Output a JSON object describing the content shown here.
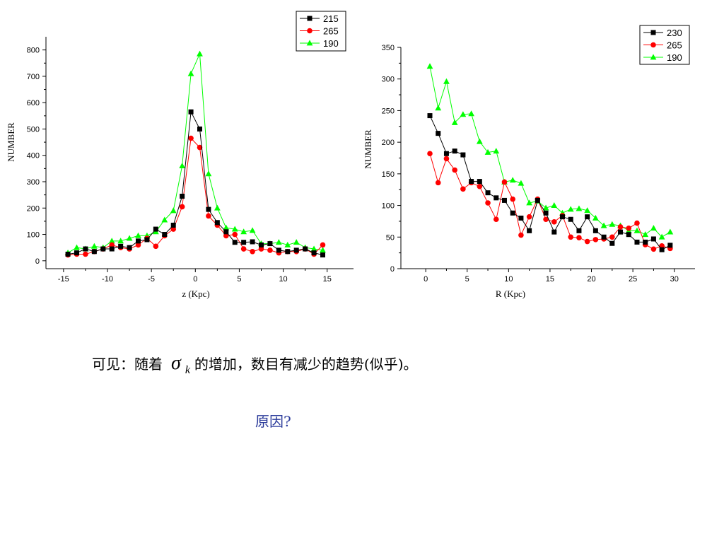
{
  "caption": {
    "before": "可见：随着",
    "symbol": "σ",
    "subscript": "k",
    "after": "的增加，数目有减少的趋势(似乎)。"
  },
  "question": "原因?",
  "colors": {
    "black": "#000000",
    "red": "#ff0000",
    "green": "#00ff00"
  },
  "chart_data": [
    {
      "type": "line",
      "title": "",
      "xlabel": "z (Kpc)",
      "ylabel": "NUMBER",
      "xlim": [
        -17,
        18
      ],
      "ylim": [
        -30,
        850
      ],
      "xticks": [
        -15,
        -10,
        -5,
        0,
        5,
        10,
        15
      ],
      "yticks": [
        0,
        100,
        200,
        300,
        400,
        500,
        600,
        700,
        800
      ],
      "grid": false,
      "legend_position": "top-right",
      "x": [
        -14.5,
        -13.5,
        -12.5,
        -11.5,
        -10.5,
        -9.5,
        -8.5,
        -7.5,
        -6.5,
        -5.5,
        -4.5,
        -3.5,
        -2.5,
        -1.5,
        -0.5,
        0.5,
        1.5,
        2.5,
        3.5,
        4.5,
        5.5,
        6.5,
        7.5,
        8.5,
        9.5,
        10.5,
        11.5,
        12.5,
        13.5,
        14.5
      ],
      "series": [
        {
          "name": "215",
          "color": "#000000",
          "marker": "square",
          "values": [
            25,
            30,
            45,
            35,
            45,
            45,
            55,
            50,
            75,
            80,
            120,
            100,
            135,
            245,
            565,
            500,
            195,
            145,
            110,
            70,
            70,
            72,
            60,
            65,
            40,
            35,
            40,
            45,
            30,
            22
          ]
        },
        {
          "name": "265",
          "color": "#ff0000",
          "marker": "circle",
          "values": [
            22,
            25,
            25,
            35,
            45,
            60,
            50,
            45,
            60,
            85,
            55,
            95,
            120,
            205,
            465,
            430,
            170,
            135,
            95,
            100,
            45,
            35,
            45,
            40,
            30,
            35,
            35,
            45,
            25,
            60
          ]
        },
        {
          "name": "190",
          "color": "#00ff00",
          "marker": "triangle",
          "values": [
            30,
            50,
            45,
            55,
            50,
            75,
            75,
            85,
            95,
            95,
            110,
            155,
            190,
            360,
            710,
            785,
            330,
            200,
            125,
            120,
            110,
            115,
            65,
            65,
            70,
            60,
            70,
            50,
            45,
            40
          ]
        }
      ]
    },
    {
      "type": "line",
      "title": "",
      "xlabel": "R (Kpc)",
      "ylabel": "NUMBER",
      "xlim": [
        -3,
        32.5
      ],
      "ylim": [
        0,
        350
      ],
      "xticks": [
        0,
        5,
        10,
        15,
        20,
        25,
        30
      ],
      "yticks": [
        0,
        50,
        100,
        150,
        200,
        250,
        300,
        350
      ],
      "grid": false,
      "legend_position": "top-right",
      "x": [
        0.5,
        1.5,
        2.5,
        3.5,
        4.5,
        5.5,
        6.5,
        7.5,
        8.5,
        9.5,
        10.5,
        11.5,
        12.5,
        13.5,
        14.5,
        15.5,
        16.5,
        17.5,
        18.5,
        19.5,
        20.5,
        21.5,
        22.5,
        23.5,
        24.5,
        25.5,
        26.5,
        27.5,
        28.5,
        29.5
      ],
      "series": [
        {
          "name": "230",
          "color": "#000000",
          "marker": "square",
          "values": [
            242,
            214,
            182,
            186,
            180,
            138,
            138,
            120,
            112,
            108,
            88,
            80,
            60,
            108,
            88,
            58,
            82,
            78,
            60,
            82,
            60,
            50,
            40,
            58,
            54,
            42,
            42,
            47,
            30,
            37
          ]
        },
        {
          "name": "265",
          "color": "#ff0000",
          "marker": "circle",
          "values": [
            182,
            136,
            174,
            156,
            126,
            136,
            130,
            104,
            78,
            137,
            110,
            53,
            82,
            110,
            78,
            74,
            84,
            50,
            49,
            43,
            46,
            47,
            50,
            66,
            64,
            72,
            38,
            31,
            36,
            32
          ]
        },
        {
          "name": "190",
          "color": "#00ff00",
          "marker": "triangle",
          "values": [
            320,
            254,
            296,
            231,
            244,
            245,
            201,
            184,
            186,
            137,
            140,
            135,
            104,
            107,
            96,
            100,
            88,
            94,
            95,
            92,
            80,
            68,
            70,
            68,
            60,
            60,
            54,
            64,
            50,
            58
          ]
        }
      ]
    }
  ]
}
